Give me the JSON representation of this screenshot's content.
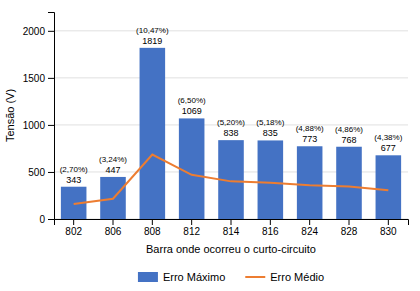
{
  "chart_data": {
    "type": "bar",
    "categories": [
      "802",
      "806",
      "808",
      "812",
      "814",
      "816",
      "824",
      "828",
      "830"
    ],
    "series": [
      {
        "name": "Erro Máximo",
        "type": "bar",
        "color": "#4472C4",
        "values": [
          343,
          447,
          1819,
          1069,
          838,
          835,
          773,
          768,
          677
        ],
        "data_labels": true,
        "annotations": [
          "(2,70%)",
          "(3,24%)",
          "(10,47%)",
          "(6,50%)",
          "(5,20%)",
          "(5,18%)",
          "(4,88%)",
          "(4,86%)",
          "(4,38%)"
        ]
      },
      {
        "name": "Erro Médio",
        "type": "line",
        "color": "#ED7D31",
        "values": [
          160,
          215,
          685,
          470,
          400,
          385,
          360,
          345,
          305
        ]
      }
    ],
    "xlabel": "Barra onde ocorreu o curto-circuito",
    "ylabel": "Tensão (V)",
    "ylim": [
      0,
      2200
    ],
    "yticks": [
      0,
      500,
      1000,
      1500,
      2000
    ],
    "grid": true,
    "legend": "bottom"
  }
}
